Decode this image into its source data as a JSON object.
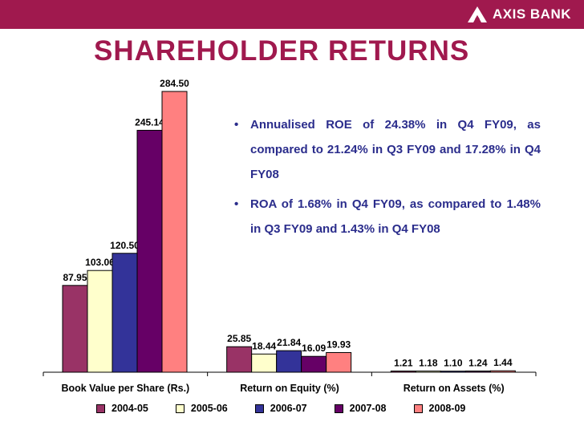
{
  "brand": {
    "logo_text": "AXIS BANK",
    "color": "#a0194e"
  },
  "title": "SHAREHOLDER RETURNS",
  "bullets": [
    "Annualised ROE of 24.38% in Q4 FY09, as compared to 21.24% in Q3 FY09 and 17.28% in Q4 FY08",
    "ROA of 1.68% in Q4 FY09, as compared to 1.48% in Q3 FY09 and 1.43% in Q4 FY08"
  ],
  "bullet_glyph": "•",
  "colors": {
    "text_accent": "#2b2d8c"
  },
  "chart_data": {
    "type": "bar",
    "title": "",
    "xlabel": "",
    "ylabel": "",
    "categories": [
      "Book Value per Share (Rs.)",
      "Return on Equity (%)",
      "Return on Assets (%)"
    ],
    "series": [
      {
        "name": "2004-05",
        "color": "#993366",
        "values": [
          87.95,
          25.85,
          1.21
        ]
      },
      {
        "name": "2005-06",
        "color": "#ffffcc",
        "values": [
          103.06,
          18.44,
          1.18
        ]
      },
      {
        "name": "2006-07",
        "color": "#333399",
        "values": [
          120.5,
          21.84,
          1.1
        ]
      },
      {
        "name": "2007-08",
        "color": "#660066",
        "values": [
          245.14,
          16.09,
          1.24
        ]
      },
      {
        "name": "2008-09",
        "color": "#ff8080",
        "values": [
          284.5,
          19.93,
          1.44
        ]
      }
    ],
    "data_labels": [
      [
        "87.95",
        "103.06",
        "120.50",
        "245.14",
        "284.50"
      ],
      [
        "25.85",
        "18.44",
        "21.84",
        "16.09",
        "19.93"
      ],
      [
        "1.21",
        "1.18",
        "1.10",
        "1.24",
        "1.44"
      ]
    ],
    "group_scale_max": [
      284.5,
      284.5,
      284.5
    ],
    "grid": false,
    "legend_position": "bottom"
  }
}
